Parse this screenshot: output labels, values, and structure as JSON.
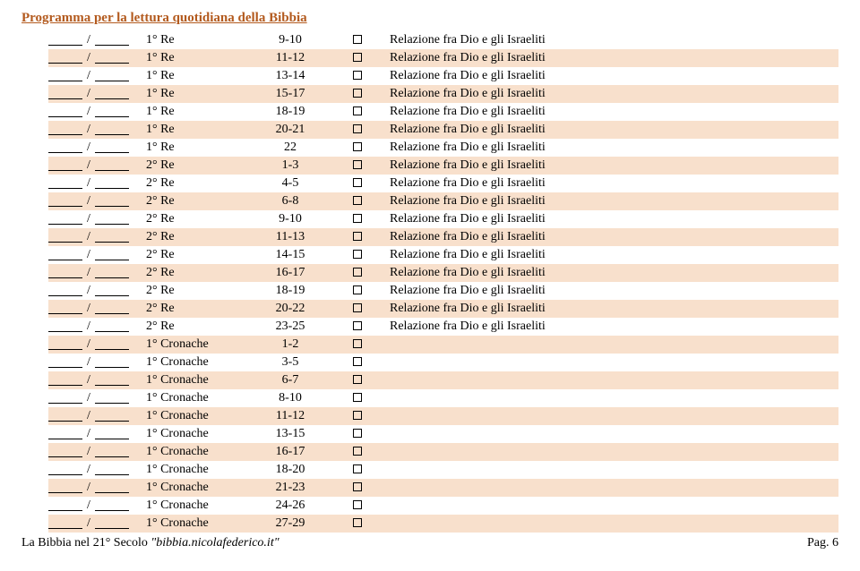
{
  "title": "Programma per la lettura quotidiana della Bibbia",
  "colors": {
    "title_color": "#b35a1e",
    "stripe_even": "#f8e0cc",
    "stripe_odd": "#ffffff"
  },
  "footer": {
    "left_prefix": "La Bibbia nel 21° Secolo ",
    "left_link": "\"bibbia.nicolafederico.it\"",
    "right_prefix": "Pag. ",
    "right_num": "6"
  },
  "rows": [
    {
      "book": "1° Re",
      "chap": "9-10",
      "desc": "Relazione fra Dio e gli Israeliti"
    },
    {
      "book": "1° Re",
      "chap": "11-12",
      "desc": "Relazione fra Dio e gli Israeliti"
    },
    {
      "book": "1° Re",
      "chap": "13-14",
      "desc": "Relazione fra Dio e gli Israeliti"
    },
    {
      "book": "1° Re",
      "chap": "15-17",
      "desc": "Relazione fra Dio e gli Israeliti"
    },
    {
      "book": "1° Re",
      "chap": "18-19",
      "desc": "Relazione fra Dio e gli Israeliti"
    },
    {
      "book": "1° Re",
      "chap": "20-21",
      "desc": "Relazione fra Dio e gli Israeliti"
    },
    {
      "book": "1° Re",
      "chap": "22",
      "desc": "Relazione fra Dio e gli Israeliti"
    },
    {
      "book": "2° Re",
      "chap": "1-3",
      "desc": "Relazione fra Dio e gli Israeliti"
    },
    {
      "book": "2° Re",
      "chap": "4-5",
      "desc": "Relazione fra Dio e gli Israeliti"
    },
    {
      "book": "2° Re",
      "chap": "6-8",
      "desc": "Relazione fra Dio e gli Israeliti"
    },
    {
      "book": "2° Re",
      "chap": "9-10",
      "desc": "Relazione fra Dio e gli Israeliti"
    },
    {
      "book": "2° Re",
      "chap": "11-13",
      "desc": "Relazione fra Dio e gli Israeliti"
    },
    {
      "book": "2° Re",
      "chap": "14-15",
      "desc": "Relazione fra Dio e gli Israeliti"
    },
    {
      "book": "2° Re",
      "chap": "16-17",
      "desc": "Relazione fra Dio e gli Israeliti"
    },
    {
      "book": "2° Re",
      "chap": "18-19",
      "desc": "Relazione fra Dio e gli Israeliti"
    },
    {
      "book": "2° Re",
      "chap": "20-22",
      "desc": "Relazione fra Dio e gli Israeliti"
    },
    {
      "book": "2° Re",
      "chap": "23-25",
      "desc": "Relazione fra Dio e gli Israeliti"
    },
    {
      "book": "1° Cronache",
      "chap": "1-2",
      "desc": ""
    },
    {
      "book": "1° Cronache",
      "chap": "3-5",
      "desc": ""
    },
    {
      "book": "1° Cronache",
      "chap": "6-7",
      "desc": ""
    },
    {
      "book": "1° Cronache",
      "chap": "8-10",
      "desc": ""
    },
    {
      "book": "1° Cronache",
      "chap": "11-12",
      "desc": ""
    },
    {
      "book": "1° Cronache",
      "chap": "13-15",
      "desc": ""
    },
    {
      "book": "1° Cronache",
      "chap": "16-17",
      "desc": ""
    },
    {
      "book": "1° Cronache",
      "chap": "18-20",
      "desc": ""
    },
    {
      "book": "1° Cronache",
      "chap": "21-23",
      "desc": ""
    },
    {
      "book": "1° Cronache",
      "chap": "24-26",
      "desc": ""
    },
    {
      "book": "1° Cronache",
      "chap": "27-29",
      "desc": ""
    }
  ]
}
